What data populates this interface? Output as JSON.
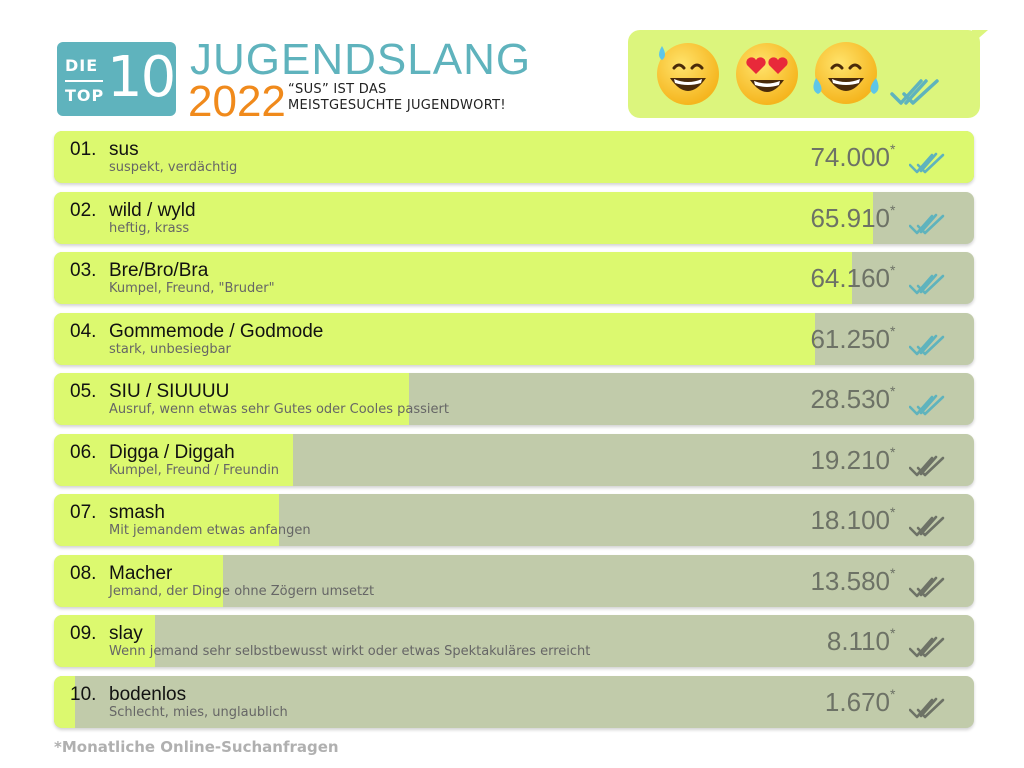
{
  "header": {
    "logo_die": "DIE",
    "logo_top": "TOP",
    "logo_num": "10",
    "title": "JUGENDSLANG",
    "year": "2022",
    "subtitle_line1": "“SUS” IST DAS",
    "subtitle_line2": "MEISTGESUCHTE JUGENDWORT!",
    "emojis": [
      "grinning-sweat-emoji",
      "heart-eyes-emoji",
      "tears-of-joy-emoji"
    ],
    "colors": {
      "teal": "#5fb3bd",
      "orange": "#f08a1c",
      "bubble_green": "#dcf57d"
    }
  },
  "chart_data": {
    "type": "bar",
    "orientation": "horizontal",
    "xlim": [
      0,
      74000
    ],
    "bar_fill_color": "#dcf96f",
    "track_color": "#c1cbaa",
    "value_suffix": "*",
    "rows": [
      {
        "rank": "01.",
        "term": "sus",
        "definition": "suspekt, verdächtig",
        "value": 74000,
        "value_label": "74.000",
        "read": true
      },
      {
        "rank": "02.",
        "term": "wild / wyld",
        "definition": "heftig, krass",
        "value": 65910,
        "value_label": "65.910",
        "read": true
      },
      {
        "rank": "03.",
        "term": "Bre/Bro/Bra",
        "definition": "Kumpel, Freund, \"Bruder\"",
        "value": 64160,
        "value_label": "64.160",
        "read": true
      },
      {
        "rank": "04.",
        "term": "Gommemode / Godmode",
        "definition": "stark, unbesiegbar",
        "value": 61250,
        "value_label": "61.250",
        "read": true
      },
      {
        "rank": "05.",
        "term": "SIU / SIUUUU",
        "definition": "Ausruf, wenn etwas sehr Gutes oder Cooles passiert",
        "value": 28530,
        "value_label": "28.530",
        "read": true
      },
      {
        "rank": "06.",
        "term": "Digga / Diggah",
        "definition": "Kumpel, Freund / Freundin",
        "value": 19210,
        "value_label": "19.210",
        "read": false
      },
      {
        "rank": "07.",
        "term": "smash",
        "definition": "Mit jemandem etwas anfangen",
        "value": 18100,
        "value_label": "18.100",
        "read": false
      },
      {
        "rank": "08.",
        "term": "Macher",
        "definition": "Jemand, der Dinge ohne Zögern umsetzt",
        "value": 13580,
        "value_label": "13.580",
        "read": false
      },
      {
        "rank": "09.",
        "term": "slay",
        "definition": "Wenn jemand sehr selbstbewusst wirkt oder etwas Spektakuläres erreicht",
        "value": 8110,
        "value_label": "8.110",
        "read": false
      },
      {
        "rank": "10.",
        "term": "bodenlos",
        "definition": "Schlecht, mies, unglaublich",
        "value": 1670,
        "value_label": "1.670",
        "read": false
      }
    ]
  },
  "footnote": "*Monatliche Online-Suchanfragen"
}
